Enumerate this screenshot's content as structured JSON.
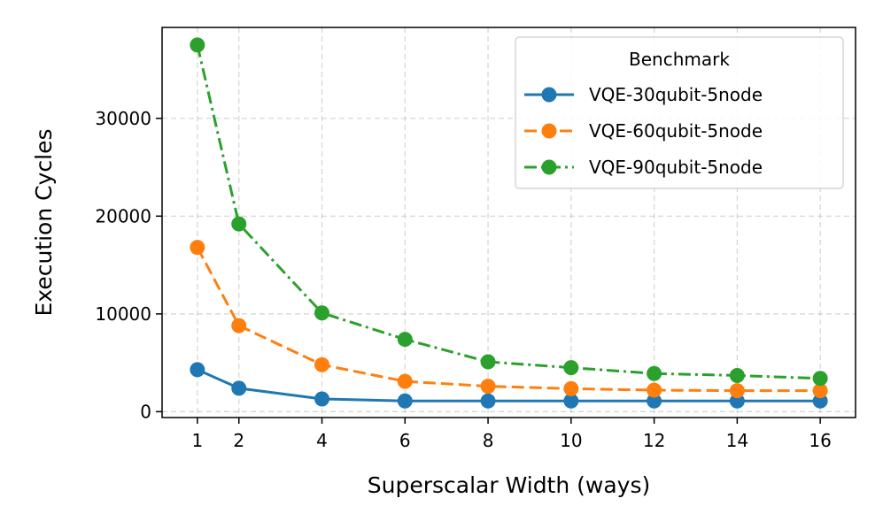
{
  "chart_data": {
    "type": "line",
    "xlabel": "Superscalar Width (ways)",
    "ylabel": "Execution Cycles",
    "x": [
      1,
      2,
      4,
      6,
      8,
      10,
      12,
      14,
      16
    ],
    "xticks": [
      1,
      2,
      4,
      6,
      8,
      10,
      12,
      14,
      16
    ],
    "yticks": [
      0,
      10000,
      20000,
      30000
    ],
    "xlim": [
      0.15,
      16.85
    ],
    "ylim": [
      -600,
      39300
    ],
    "grid": true,
    "legend": {
      "title": "Benchmark",
      "position": "top-right"
    },
    "series": [
      {
        "name": "VQE-30qubit-5node",
        "color": "#1f77b4",
        "linestyle": "solid",
        "values": [
          4300,
          2400,
          1300,
          1100,
          1100,
          1100,
          1100,
          1100,
          1100
        ]
      },
      {
        "name": "VQE-60qubit-5node",
        "color": "#ff7f0e",
        "linestyle": "dashed",
        "values": [
          16800,
          8800,
          4800,
          3100,
          2600,
          2350,
          2200,
          2150,
          2150
        ]
      },
      {
        "name": "VQE-90qubit-5node",
        "color": "#2ca02c",
        "linestyle": "dashdot",
        "values": [
          37500,
          19200,
          10100,
          7400,
          5100,
          4500,
          3900,
          3700,
          3400
        ]
      }
    ]
  }
}
